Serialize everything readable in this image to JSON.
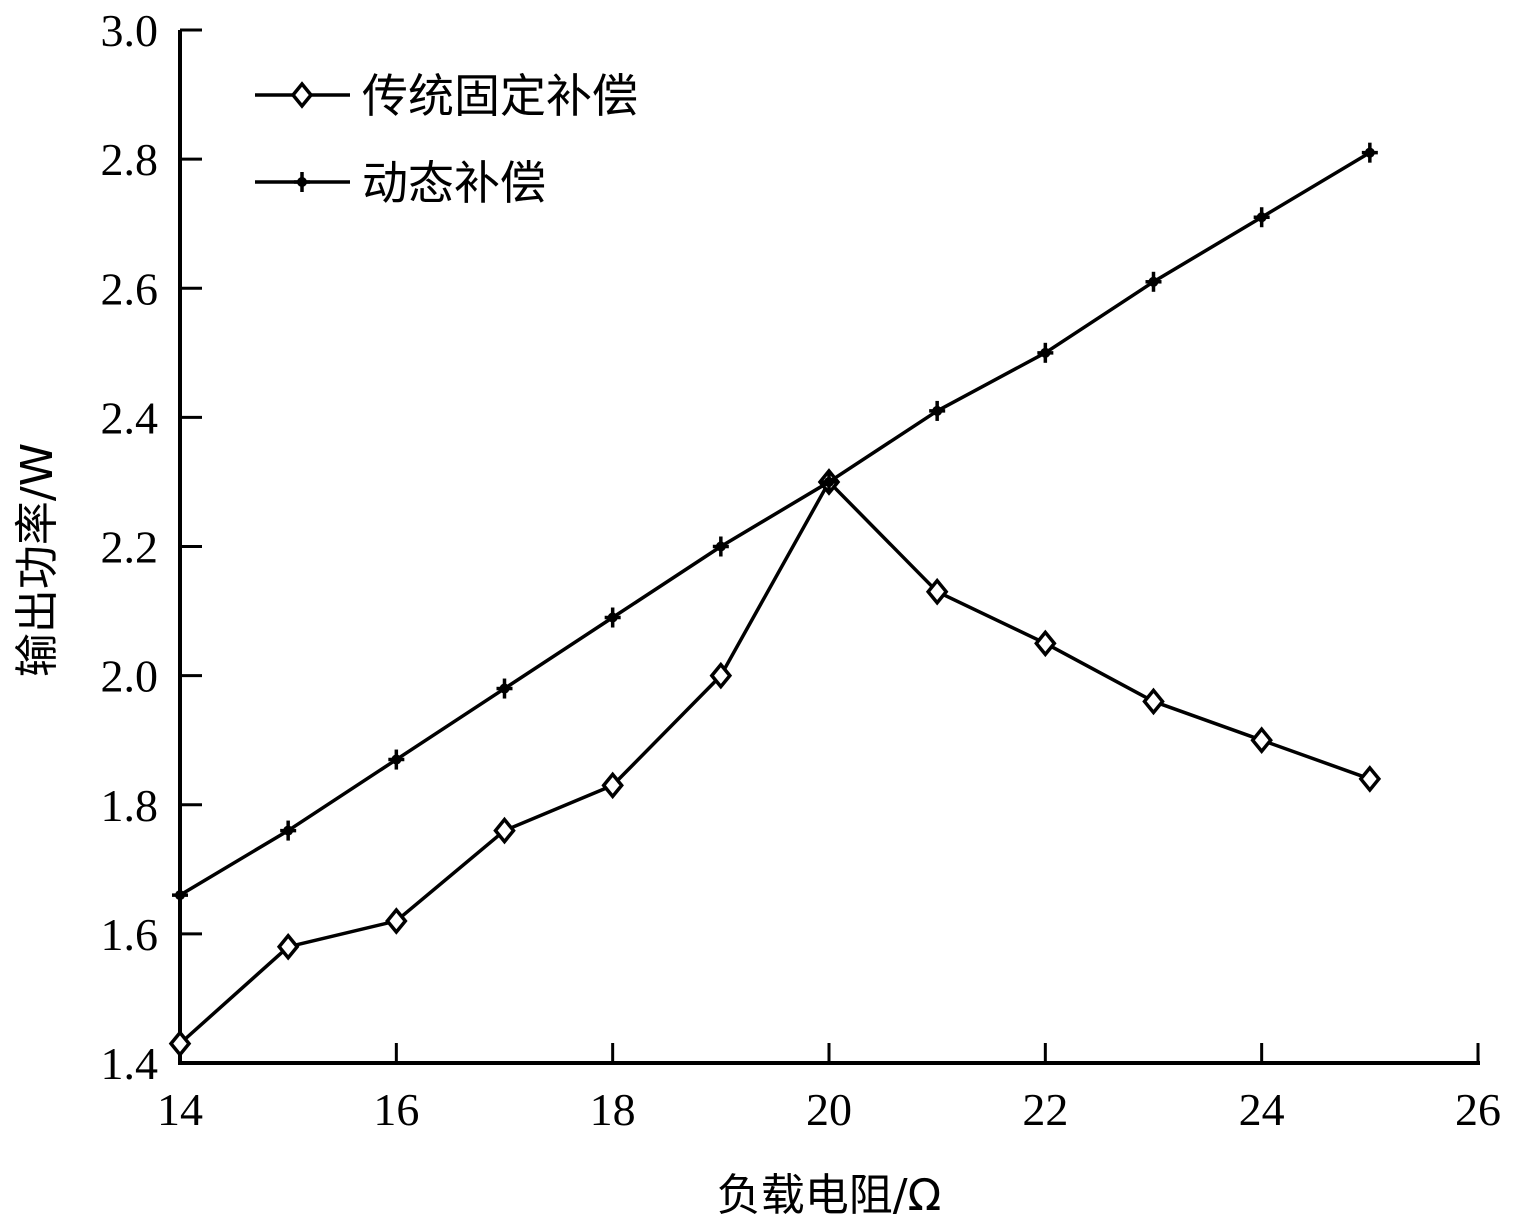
{
  "chart_data": {
    "type": "line",
    "title": "",
    "xlabel": "负载电阻/Ω",
    "ylabel": "输出功率/W",
    "xlim": [
      14,
      26
    ],
    "ylim": [
      1.4,
      3.0
    ],
    "xticks": [
      14,
      16,
      18,
      20,
      22,
      24,
      26
    ],
    "xtick_labels": [
      "14",
      "16",
      "18",
      "20",
      "22",
      "24",
      "26"
    ],
    "yticks": [
      1.4,
      1.6,
      1.8,
      2.0,
      2.2,
      2.4,
      2.6,
      2.8,
      3.0
    ],
    "ytick_labels": [
      "1.4",
      "1.6",
      "1.8",
      "2.0",
      "2.2",
      "2.4",
      "2.6",
      "2.8",
      "3.0"
    ],
    "grid": false,
    "legend_position": "upper left",
    "x": [
      14,
      15,
      16,
      17,
      18,
      19,
      20,
      21,
      22,
      23,
      24,
      25
    ],
    "series": [
      {
        "name": "传统固定补偿",
        "marker": "diamond-open",
        "color": "#000000",
        "values": [
          1.43,
          1.58,
          1.62,
          1.76,
          1.83,
          2.0,
          2.3,
          2.13,
          2.05,
          1.96,
          1.9,
          1.84
        ]
      },
      {
        "name": "动态补偿",
        "marker": "star",
        "color": "#000000",
        "values": [
          1.66,
          1.76,
          1.87,
          1.98,
          2.09,
          2.2,
          2.3,
          2.41,
          2.5,
          2.61,
          2.71,
          2.81
        ]
      }
    ]
  }
}
